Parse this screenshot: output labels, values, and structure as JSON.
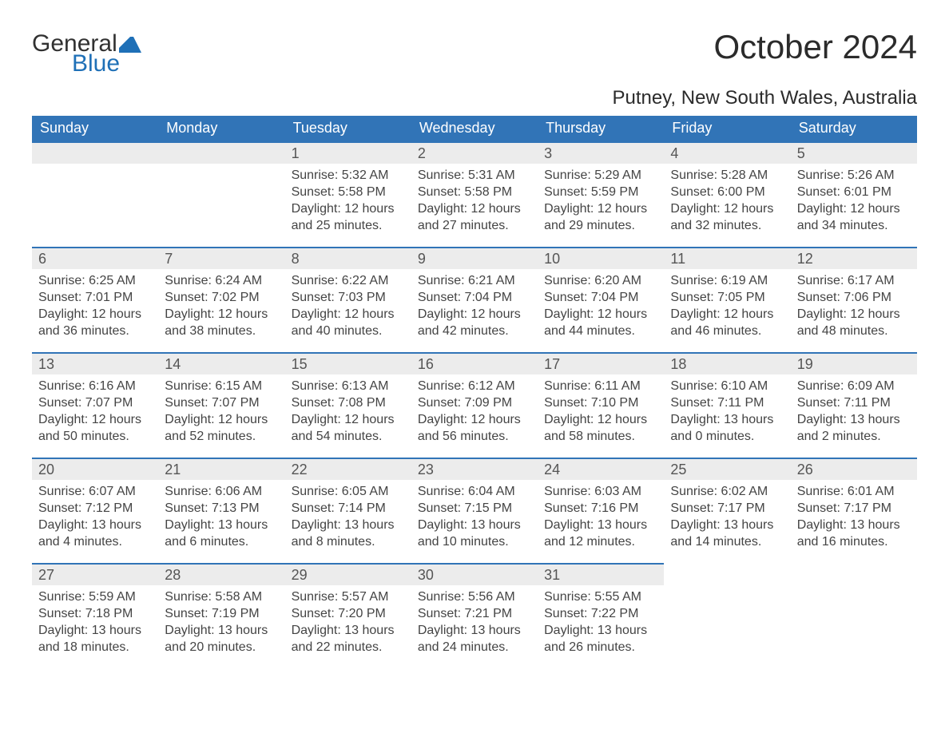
{
  "logo": {
    "general": "General",
    "blue": "Blue",
    "icon_color": "#1f70b7"
  },
  "title": "October 2024",
  "subtitle": "Putney, New South Wales, Australia",
  "colors": {
    "header_bg": "#3174b7",
    "header_text": "#ffffff",
    "band_bg": "#ececec",
    "band_border": "#3174b7",
    "text": "#3b3b3b"
  },
  "day_headers": [
    "Sunday",
    "Monday",
    "Tuesday",
    "Wednesday",
    "Thursday",
    "Friday",
    "Saturday"
  ],
  "weeks": [
    [
      null,
      null,
      {
        "n": "1",
        "sr": "Sunrise: 5:32 AM",
        "ss": "Sunset: 5:58 PM",
        "d1": "Daylight: 12 hours",
        "d2": "and 25 minutes."
      },
      {
        "n": "2",
        "sr": "Sunrise: 5:31 AM",
        "ss": "Sunset: 5:58 PM",
        "d1": "Daylight: 12 hours",
        "d2": "and 27 minutes."
      },
      {
        "n": "3",
        "sr": "Sunrise: 5:29 AM",
        "ss": "Sunset: 5:59 PM",
        "d1": "Daylight: 12 hours",
        "d2": "and 29 minutes."
      },
      {
        "n": "4",
        "sr": "Sunrise: 5:28 AM",
        "ss": "Sunset: 6:00 PM",
        "d1": "Daylight: 12 hours",
        "d2": "and 32 minutes."
      },
      {
        "n": "5",
        "sr": "Sunrise: 5:26 AM",
        "ss": "Sunset: 6:01 PM",
        "d1": "Daylight: 12 hours",
        "d2": "and 34 minutes."
      }
    ],
    [
      {
        "n": "6",
        "sr": "Sunrise: 6:25 AM",
        "ss": "Sunset: 7:01 PM",
        "d1": "Daylight: 12 hours",
        "d2": "and 36 minutes."
      },
      {
        "n": "7",
        "sr": "Sunrise: 6:24 AM",
        "ss": "Sunset: 7:02 PM",
        "d1": "Daylight: 12 hours",
        "d2": "and 38 minutes."
      },
      {
        "n": "8",
        "sr": "Sunrise: 6:22 AM",
        "ss": "Sunset: 7:03 PM",
        "d1": "Daylight: 12 hours",
        "d2": "and 40 minutes."
      },
      {
        "n": "9",
        "sr": "Sunrise: 6:21 AM",
        "ss": "Sunset: 7:04 PM",
        "d1": "Daylight: 12 hours",
        "d2": "and 42 minutes."
      },
      {
        "n": "10",
        "sr": "Sunrise: 6:20 AM",
        "ss": "Sunset: 7:04 PM",
        "d1": "Daylight: 12 hours",
        "d2": "and 44 minutes."
      },
      {
        "n": "11",
        "sr": "Sunrise: 6:19 AM",
        "ss": "Sunset: 7:05 PM",
        "d1": "Daylight: 12 hours",
        "d2": "and 46 minutes."
      },
      {
        "n": "12",
        "sr": "Sunrise: 6:17 AM",
        "ss": "Sunset: 7:06 PM",
        "d1": "Daylight: 12 hours",
        "d2": "and 48 minutes."
      }
    ],
    [
      {
        "n": "13",
        "sr": "Sunrise: 6:16 AM",
        "ss": "Sunset: 7:07 PM",
        "d1": "Daylight: 12 hours",
        "d2": "and 50 minutes."
      },
      {
        "n": "14",
        "sr": "Sunrise: 6:15 AM",
        "ss": "Sunset: 7:07 PM",
        "d1": "Daylight: 12 hours",
        "d2": "and 52 minutes."
      },
      {
        "n": "15",
        "sr": "Sunrise: 6:13 AM",
        "ss": "Sunset: 7:08 PM",
        "d1": "Daylight: 12 hours",
        "d2": "and 54 minutes."
      },
      {
        "n": "16",
        "sr": "Sunrise: 6:12 AM",
        "ss": "Sunset: 7:09 PM",
        "d1": "Daylight: 12 hours",
        "d2": "and 56 minutes."
      },
      {
        "n": "17",
        "sr": "Sunrise: 6:11 AM",
        "ss": "Sunset: 7:10 PM",
        "d1": "Daylight: 12 hours",
        "d2": "and 58 minutes."
      },
      {
        "n": "18",
        "sr": "Sunrise: 6:10 AM",
        "ss": "Sunset: 7:11 PM",
        "d1": "Daylight: 13 hours",
        "d2": "and 0 minutes."
      },
      {
        "n": "19",
        "sr": "Sunrise: 6:09 AM",
        "ss": "Sunset: 7:11 PM",
        "d1": "Daylight: 13 hours",
        "d2": "and 2 minutes."
      }
    ],
    [
      {
        "n": "20",
        "sr": "Sunrise: 6:07 AM",
        "ss": "Sunset: 7:12 PM",
        "d1": "Daylight: 13 hours",
        "d2": "and 4 minutes."
      },
      {
        "n": "21",
        "sr": "Sunrise: 6:06 AM",
        "ss": "Sunset: 7:13 PM",
        "d1": "Daylight: 13 hours",
        "d2": "and 6 minutes."
      },
      {
        "n": "22",
        "sr": "Sunrise: 6:05 AM",
        "ss": "Sunset: 7:14 PM",
        "d1": "Daylight: 13 hours",
        "d2": "and 8 minutes."
      },
      {
        "n": "23",
        "sr": "Sunrise: 6:04 AM",
        "ss": "Sunset: 7:15 PM",
        "d1": "Daylight: 13 hours",
        "d2": "and 10 minutes."
      },
      {
        "n": "24",
        "sr": "Sunrise: 6:03 AM",
        "ss": "Sunset: 7:16 PM",
        "d1": "Daylight: 13 hours",
        "d2": "and 12 minutes."
      },
      {
        "n": "25",
        "sr": "Sunrise: 6:02 AM",
        "ss": "Sunset: 7:17 PM",
        "d1": "Daylight: 13 hours",
        "d2": "and 14 minutes."
      },
      {
        "n": "26",
        "sr": "Sunrise: 6:01 AM",
        "ss": "Sunset: 7:17 PM",
        "d1": "Daylight: 13 hours",
        "d2": "and 16 minutes."
      }
    ],
    [
      {
        "n": "27",
        "sr": "Sunrise: 5:59 AM",
        "ss": "Sunset: 7:18 PM",
        "d1": "Daylight: 13 hours",
        "d2": "and 18 minutes."
      },
      {
        "n": "28",
        "sr": "Sunrise: 5:58 AM",
        "ss": "Sunset: 7:19 PM",
        "d1": "Daylight: 13 hours",
        "d2": "and 20 minutes."
      },
      {
        "n": "29",
        "sr": "Sunrise: 5:57 AM",
        "ss": "Sunset: 7:20 PM",
        "d1": "Daylight: 13 hours",
        "d2": "and 22 minutes."
      },
      {
        "n": "30",
        "sr": "Sunrise: 5:56 AM",
        "ss": "Sunset: 7:21 PM",
        "d1": "Daylight: 13 hours",
        "d2": "and 24 minutes."
      },
      {
        "n": "31",
        "sr": "Sunrise: 5:55 AM",
        "ss": "Sunset: 7:22 PM",
        "d1": "Daylight: 13 hours",
        "d2": "and 26 minutes."
      },
      null,
      null
    ]
  ]
}
